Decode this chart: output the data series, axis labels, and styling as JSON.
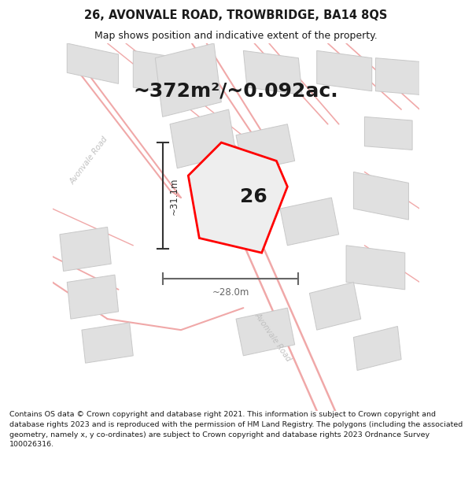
{
  "title": "26, AVONVALE ROAD, TROWBRIDGE, BA14 8QS",
  "subtitle": "Map shows position and indicative extent of the property.",
  "area_label": "~372m²/~0.092ac.",
  "plot_number": "26",
  "dim_vertical": "~31.1m",
  "dim_horizontal": "~28.0m",
  "footer": "Contains OS data © Crown copyright and database right 2021. This information is subject to Crown copyright and database rights 2023 and is reproduced with the permission of HM Land Registry. The polygons (including the associated geometry, namely x, y co-ordinates) are subject to Crown copyright and database rights 2023 Ordnance Survey 100026316.",
  "map_bg": "#f7f7f7",
  "building_fill": "#e0e0e0",
  "building_edge": "#c8c8c8",
  "road_fill": "#f5c8c8",
  "road_edge": "#f0a8a8",
  "plot_edge": "#ff0000",
  "plot_fill": "#eeeeee",
  "dim_color": "#333333",
  "road_label_color": "#c0c0c0",
  "title_color": "#1a1a1a",
  "footer_color": "#1a1a1a",
  "title_fontsize": 10.5,
  "subtitle_fontsize": 9,
  "area_fontsize": 18,
  "plot_label_fontsize": 18,
  "dim_fontsize": 8.5,
  "footer_fontsize": 6.8
}
